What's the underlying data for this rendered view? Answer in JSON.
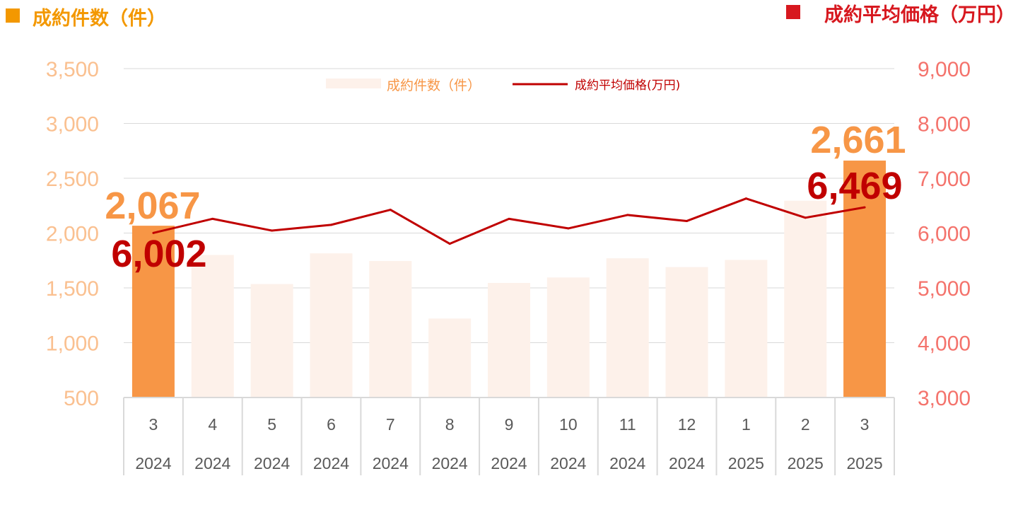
{
  "header": {
    "left_title": "成約件数（件）",
    "right_title": "成約平均価格（万円）"
  },
  "colors": {
    "bar_highlight": "#F79646",
    "bar_faded": "#FDF1EA",
    "line": "#C00000",
    "left_axis_text": "#FAC090",
    "right_axis_text": "#F4736C",
    "left_title": "#F39800",
    "right_title": "#D7181F",
    "grid": "#D9D9D9"
  },
  "chart_data": {
    "type": "bar+line",
    "categories": [
      {
        "month": "3",
        "year": "2024"
      },
      {
        "month": "4",
        "year": "2024"
      },
      {
        "month": "5",
        "year": "2024"
      },
      {
        "month": "6",
        "year": "2024"
      },
      {
        "month": "7",
        "year": "2024"
      },
      {
        "month": "8",
        "year": "2024"
      },
      {
        "month": "9",
        "year": "2024"
      },
      {
        "month": "10",
        "year": "2024"
      },
      {
        "month": "11",
        "year": "2024"
      },
      {
        "month": "12",
        "year": "2024"
      },
      {
        "month": "1",
        "year": "2025"
      },
      {
        "month": "2",
        "year": "2025"
      },
      {
        "month": "3",
        "year": "2025"
      }
    ],
    "series": [
      {
        "name": "成約件数（件）",
        "type": "bar",
        "axis": "left",
        "values": [
          2067,
          1800,
          1535,
          1815,
          1745,
          1220,
          1545,
          1595,
          1770,
          1690,
          1755,
          2295,
          2661
        ],
        "highlighted": [
          true,
          false,
          false,
          false,
          false,
          false,
          false,
          false,
          false,
          false,
          false,
          false,
          true
        ]
      },
      {
        "name": "成約平均価格(万円)",
        "type": "line",
        "axis": "right",
        "values": [
          6002,
          6260,
          6045,
          6150,
          6425,
          5805,
          6260,
          6085,
          6330,
          6220,
          6630,
          6280,
          6469
        ]
      }
    ],
    "left_axis": {
      "min": 500,
      "max": 3500,
      "ticks": [
        "500",
        "1,000",
        "1,500",
        "2,000",
        "2,500",
        "3,000",
        "3,500"
      ]
    },
    "right_axis": {
      "min": 3000,
      "max": 9000,
      "ticks": [
        "3,000",
        "4,000",
        "5,000",
        "6,000",
        "7,000",
        "8,000",
        "9,000"
      ]
    },
    "data_labels": [
      {
        "series": 0,
        "index": 0,
        "text": "2,067"
      },
      {
        "series": 1,
        "index": 0,
        "text": "6,002"
      },
      {
        "series": 0,
        "index": 12,
        "text": "2,661"
      },
      {
        "series": 1,
        "index": 12,
        "text": "6,469"
      }
    ],
    "legend": [
      "成約件数（件）",
      "成約平均価格(万円)"
    ],
    "legend_position": "top-center",
    "grid": true
  }
}
